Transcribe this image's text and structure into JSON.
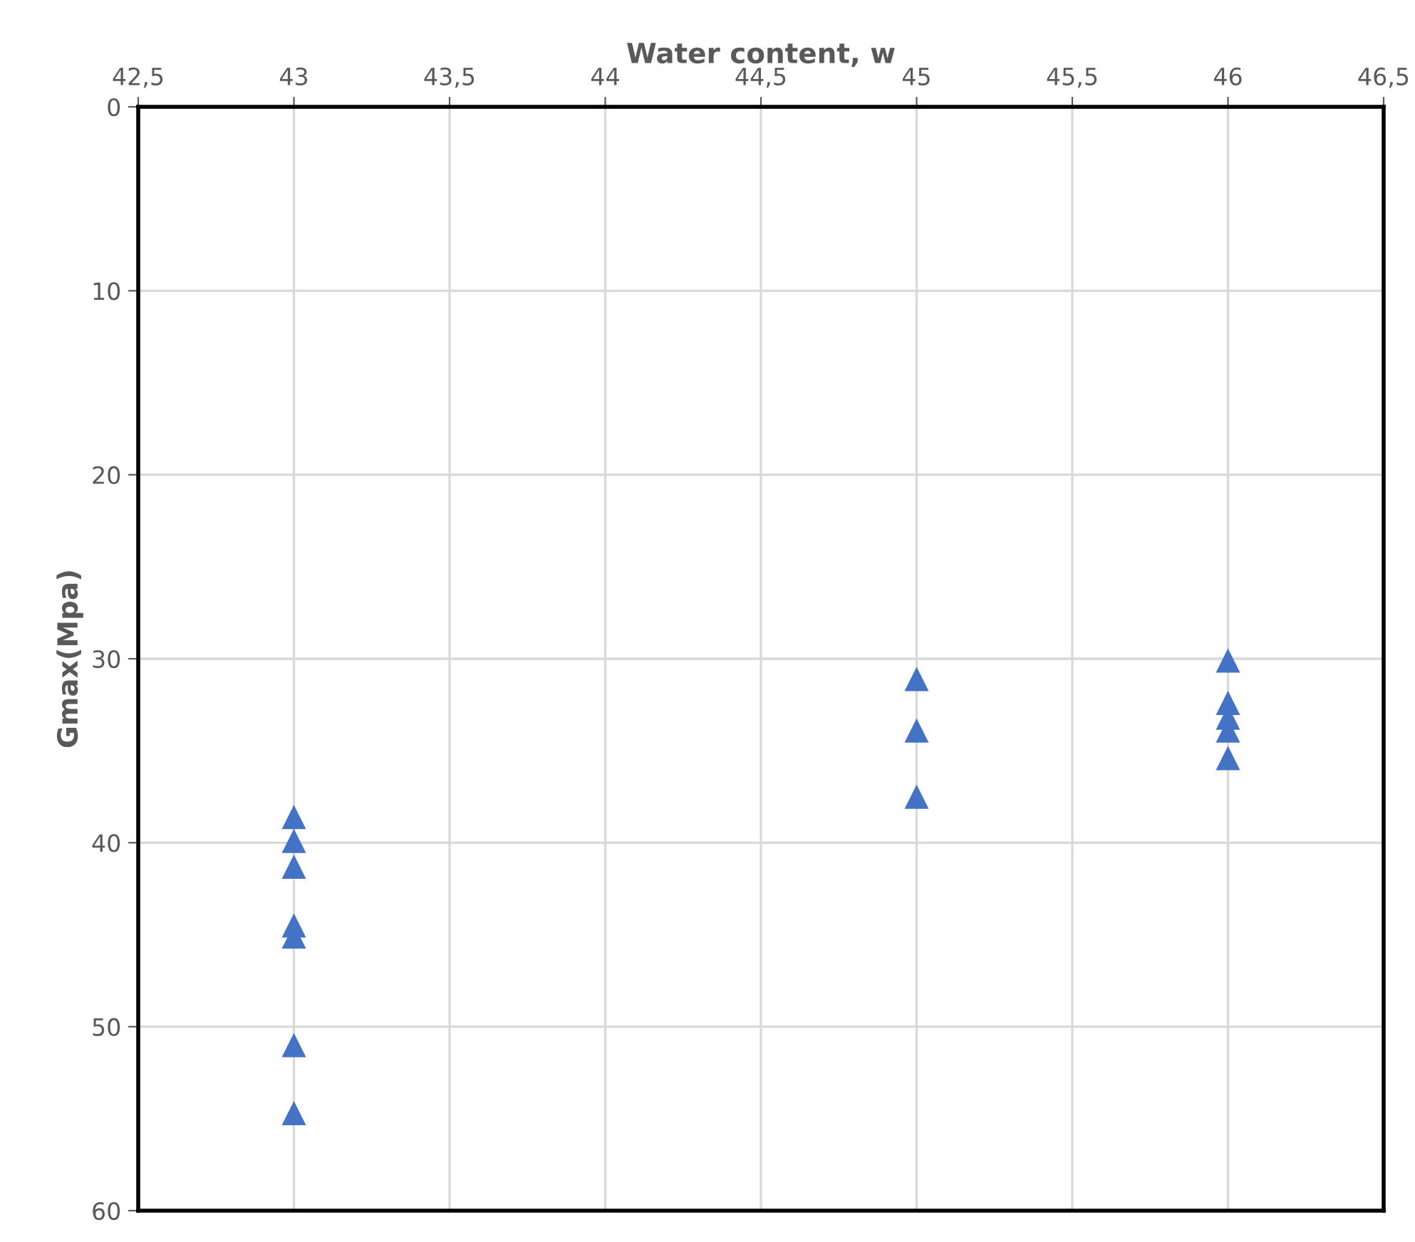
{
  "chart_data": {
    "type": "scatter",
    "xlabel": "Water content, w",
    "ylabel": "Gmax(Mpa)",
    "x": [
      43,
      43,
      43,
      43,
      43,
      43,
      43,
      45,
      45,
      45,
      46,
      46,
      46,
      46,
      46
    ],
    "values": [
      38.6,
      39.9,
      41.3,
      44.5,
      45.1,
      51.0,
      54.7,
      31.1,
      33.9,
      37.5,
      30.1,
      32.4,
      33.2,
      33.9,
      35.4
    ],
    "color": "#4472c4",
    "marker": "triangle",
    "grid": true,
    "legend": false,
    "xlim": [
      42.5,
      46.5
    ],
    "xticks": [
      {
        "value": 42.5,
        "label": "42,5"
      },
      43,
      {
        "value": 43.5,
        "label": "43,5"
      },
      44,
      {
        "value": 44.5,
        "label": "44,5"
      },
      45,
      {
        "value": 45.5,
        "label": "45,5"
      },
      46,
      {
        "value": 46.5,
        "label": "46,5"
      }
    ],
    "ylim": [
      60,
      0
    ],
    "yticks": [
      0,
      10,
      20,
      30,
      40,
      50,
      60
    ]
  }
}
